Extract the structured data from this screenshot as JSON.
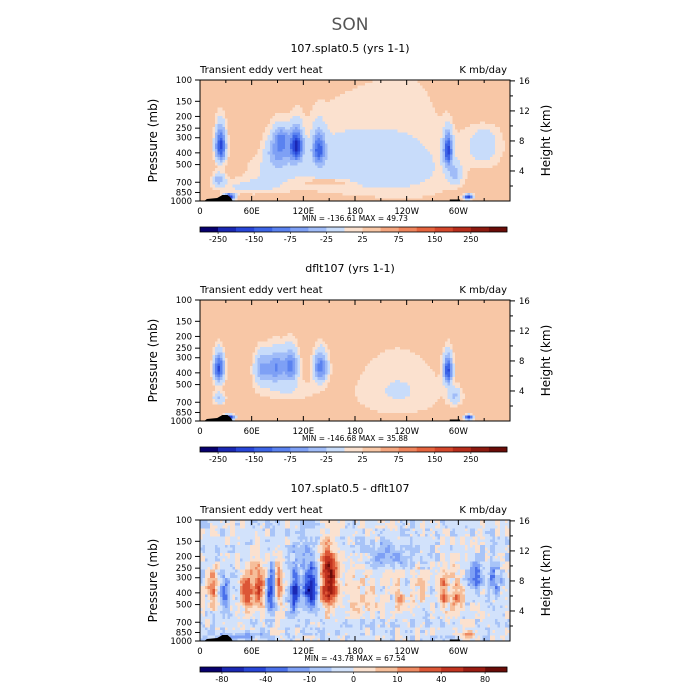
{
  "main_title": "SON",
  "chart_data": [
    {
      "type": "heatmap",
      "title": "107.splat0.5 (yrs 1-1)",
      "subtitle_left": "Transient eddy vert heat",
      "subtitle_right": "K mb/day",
      "ylabel_left": "Pressure (mb)",
      "ylabel_right": "Height (km)",
      "x_ticks": [
        {
          "label": "0",
          "lon": 0
        },
        {
          "label": "60E",
          "lon": 60
        },
        {
          "label": "120E",
          "lon": 120
        },
        {
          "label": "180",
          "lon": 180
        },
        {
          "label": "120W",
          "lon": 240
        },
        {
          "label": "60W",
          "lon": 300
        }
      ],
      "xlim": [
        0,
        360
      ],
      "pressure_ticks": [
        {
          "label": "100",
          "p": 100
        },
        {
          "label": "150",
          "p": 150
        },
        {
          "label": "200",
          "p": 200
        },
        {
          "label": "250",
          "p": 250
        },
        {
          "label": "300",
          "p": 300
        },
        {
          "label": "400",
          "p": 400
        },
        {
          "label": "500",
          "p": 500
        },
        {
          "label": "700",
          "p": 700
        },
        {
          "label": "850",
          "p": 850
        },
        {
          "label": "1000",
          "p": 1000
        }
      ],
      "plim": [
        100,
        1000
      ],
      "height_ticks": [
        {
          "label": "4",
          "km": 4
        },
        {
          "label": "8",
          "km": 8
        },
        {
          "label": "12",
          "km": 12
        },
        {
          "label": "16",
          "km": 16
        }
      ],
      "stats": "MIN = -136.61   MAX =  49.73",
      "colorbar_labels": [
        "-250",
        "-150",
        "-75",
        "-25",
        "25",
        "75",
        "150",
        "250"
      ],
      "colors": [
        "#08006e",
        "#1a28b4",
        "#2846d8",
        "#3c64e6",
        "#5a82f0",
        "#7ea0f5",
        "#a0bcf8",
        "#c8dcfa",
        "#fbe1cf",
        "#f8c7a6",
        "#f4a57e",
        "#ee845c",
        "#e5643e",
        "#d4472b",
        "#b72d1c",
        "#8d1a10",
        "#6a0c08"
      ],
      "field": {
        "background": 0.2,
        "blobs": [
          {
            "lon": 24,
            "p": 350,
            "slon": 6,
            "sp": 110,
            "a": -3.3
          },
          {
            "lon": 22,
            "p": 660,
            "slon": 7,
            "sp": 80,
            "a": -1.2
          },
          {
            "lon": 34,
            "p": 920,
            "slon": 6,
            "sp": 50,
            "a": -4
          },
          {
            "lon": 92,
            "p": 380,
            "slon": 14,
            "sp": 120,
            "a": -1.6
          },
          {
            "lon": 95,
            "p": 300,
            "slon": 8,
            "sp": 60,
            "a": -1.3
          },
          {
            "lon": 85,
            "p": 550,
            "slon": 30,
            "sp": 150,
            "a": -0.5
          },
          {
            "lon": 112,
            "p": 350,
            "slon": 7,
            "sp": 100,
            "a": -3.6
          },
          {
            "lon": 138,
            "p": 370,
            "slon": 7,
            "sp": 110,
            "a": -2.5
          },
          {
            "lon": 160,
            "p": 500,
            "slon": 55,
            "sp": 300,
            "a": -0.7
          },
          {
            "lon": 60,
            "p": 760,
            "slon": 40,
            "sp": 110,
            "a": -0.6
          },
          {
            "lon": 240,
            "p": 520,
            "slon": 60,
            "sp": 400,
            "a": -0.6
          },
          {
            "lon": 288,
            "p": 380,
            "slon": 5,
            "sp": 110,
            "a": -3.2
          },
          {
            "lon": 296,
            "p": 600,
            "slon": 8,
            "sp": 120,
            "a": -1.0
          },
          {
            "lon": 312,
            "p": 920,
            "slon": 5,
            "sp": 40,
            "a": -3.6
          },
          {
            "lon": 330,
            "p": 350,
            "slon": 20,
            "sp": 150,
            "a": -0.7
          },
          {
            "lon": 330,
            "p": 170,
            "slon": 30,
            "sp": 50,
            "a": 0.6
          },
          {
            "lon": 150,
            "p": 700,
            "slon": 25,
            "sp": 40,
            "a": 0.6
          }
        ]
      }
    },
    {
      "type": "heatmap",
      "title": "dflt107 (yrs 1-1)",
      "subtitle_left": "Transient eddy vert heat",
      "subtitle_right": "K mb/day",
      "ylabel_left": "Pressure (mb)",
      "ylabel_right": "Height (km)",
      "x_ticks": [
        {
          "label": "0",
          "lon": 0
        },
        {
          "label": "60E",
          "lon": 60
        },
        {
          "label": "120E",
          "lon": 120
        },
        {
          "label": "180",
          "lon": 180
        },
        {
          "label": "120W",
          "lon": 240
        },
        {
          "label": "60W",
          "lon": 300
        }
      ],
      "xlim": [
        0,
        360
      ],
      "pressure_ticks": [
        {
          "label": "100",
          "p": 100
        },
        {
          "label": "150",
          "p": 150
        },
        {
          "label": "200",
          "p": 200
        },
        {
          "label": "250",
          "p": 250
        },
        {
          "label": "300",
          "p": 300
        },
        {
          "label": "400",
          "p": 400
        },
        {
          "label": "500",
          "p": 500
        },
        {
          "label": "700",
          "p": 700
        },
        {
          "label": "850",
          "p": 850
        },
        {
          "label": "1000",
          "p": 1000
        }
      ],
      "plim": [
        100,
        1000
      ],
      "height_ticks": [
        {
          "label": "4",
          "km": 4
        },
        {
          "label": "8",
          "km": 8
        },
        {
          "label": "12",
          "km": 12
        },
        {
          "label": "16",
          "km": 16
        }
      ],
      "stats": "MIN = -146.68   MAX =  35.88",
      "colorbar_labels": [
        "-250",
        "-150",
        "-75",
        "-25",
        "25",
        "75",
        "150",
        "250"
      ],
      "colors": [
        "#08006e",
        "#1a28b4",
        "#2846d8",
        "#3c64e6",
        "#5a82f0",
        "#7ea0f5",
        "#a0bcf8",
        "#c8dcfa",
        "#fbe1cf",
        "#f8c7a6",
        "#f4a57e",
        "#ee845c",
        "#e5643e",
        "#d4472b",
        "#b72d1c",
        "#8d1a10",
        "#6a0c08"
      ],
      "field": {
        "background": 0.25,
        "blobs": [
          {
            "lon": 22,
            "p": 370,
            "slon": 6,
            "sp": 100,
            "a": -3.2
          },
          {
            "lon": 22,
            "p": 650,
            "slon": 7,
            "sp": 80,
            "a": -1.1
          },
          {
            "lon": 34,
            "p": 930,
            "slon": 6,
            "sp": 45,
            "a": -4
          },
          {
            "lon": 72,
            "p": 370,
            "slon": 9,
            "sp": 110,
            "a": -1.7
          },
          {
            "lon": 88,
            "p": 360,
            "slon": 9,
            "sp": 110,
            "a": -2.0
          },
          {
            "lon": 105,
            "p": 350,
            "slon": 9,
            "sp": 110,
            "a": -2.2
          },
          {
            "lon": 140,
            "p": 360,
            "slon": 8,
            "sp": 100,
            "a": -2.4
          },
          {
            "lon": 100,
            "p": 560,
            "slon": 40,
            "sp": 120,
            "a": -0.5
          },
          {
            "lon": 230,
            "p": 560,
            "slon": 55,
            "sp": 350,
            "a": -0.55
          },
          {
            "lon": 288,
            "p": 380,
            "slon": 5,
            "sp": 100,
            "a": -3.1
          },
          {
            "lon": 296,
            "p": 620,
            "slon": 8,
            "sp": 100,
            "a": -1.0
          },
          {
            "lon": 312,
            "p": 930,
            "slon": 5,
            "sp": 40,
            "a": -3.6
          },
          {
            "lon": 80,
            "p": 780,
            "slon": 30,
            "sp": 30,
            "a": 0.5
          }
        ]
      }
    },
    {
      "type": "heatmap",
      "title": "107.splat0.5 - dflt107",
      "subtitle_left": "Transient eddy vert heat",
      "subtitle_right": "K mb/day",
      "ylabel_left": "Pressure (mb)",
      "ylabel_right": "Height (km)",
      "x_ticks": [
        {
          "label": "0",
          "lon": 0
        },
        {
          "label": "60E",
          "lon": 60
        },
        {
          "label": "120E",
          "lon": 120
        },
        {
          "label": "180",
          "lon": 180
        },
        {
          "label": "120W",
          "lon": 240
        },
        {
          "label": "60W",
          "lon": 300
        }
      ],
      "xlim": [
        0,
        360
      ],
      "pressure_ticks": [
        {
          "label": "100",
          "p": 100
        },
        {
          "label": "150",
          "p": 150
        },
        {
          "label": "200",
          "p": 200
        },
        {
          "label": "250",
          "p": 250
        },
        {
          "label": "300",
          "p": 300
        },
        {
          "label": "400",
          "p": 400
        },
        {
          "label": "500",
          "p": 500
        },
        {
          "label": "700",
          "p": 700
        },
        {
          "label": "850",
          "p": 850
        },
        {
          "label": "1000",
          "p": 1000
        }
      ],
      "plim": [
        100,
        1000
      ],
      "height_ticks": [
        {
          "label": "4",
          "km": 4
        },
        {
          "label": "8",
          "km": 8
        },
        {
          "label": "12",
          "km": 12
        },
        {
          "label": "16",
          "km": 16
        }
      ],
      "stats": "MIN = -43.78   MAX =  67.54",
      "colorbar_labels": [
        "-80",
        "-40",
        "-10",
        "0",
        "10",
        "40",
        "80"
      ],
      "colors": [
        "#08006e",
        "#1a28b4",
        "#2846d8",
        "#4a70ea",
        "#7ea0f5",
        "#a8c4f8",
        "#d2e2fb",
        "#fbe1cf",
        "#f6be9a",
        "#ee8a62",
        "#dc5636",
        "#c23420",
        "#9a1c12",
        "#6a0c08"
      ],
      "field": {
        "background": -0.3,
        "noise": 1.2,
        "blobs": [
          {
            "lon": 15,
            "p": 380,
            "slon": 5,
            "sp": 140,
            "a": 2.2
          },
          {
            "lon": 28,
            "p": 420,
            "slon": 5,
            "sp": 120,
            "a": -2.0
          },
          {
            "lon": 55,
            "p": 400,
            "slon": 8,
            "sp": 160,
            "a": 2.6
          },
          {
            "lon": 70,
            "p": 380,
            "slon": 6,
            "sp": 140,
            "a": 2.8
          },
          {
            "lon": 82,
            "p": 400,
            "slon": 5,
            "sp": 150,
            "a": -2.4
          },
          {
            "lon": 92,
            "p": 360,
            "slon": 4,
            "sp": 140,
            "a": 2.3
          },
          {
            "lon": 110,
            "p": 400,
            "slon": 5,
            "sp": 160,
            "a": -3.0
          },
          {
            "lon": 128,
            "p": 380,
            "slon": 9,
            "sp": 160,
            "a": -3.4
          },
          {
            "lon": 150,
            "p": 360,
            "slon": 10,
            "sp": 160,
            "a": 4.0
          },
          {
            "lon": 148,
            "p": 230,
            "slon": 10,
            "sp": 60,
            "a": 1.5
          },
          {
            "lon": 190,
            "p": 420,
            "slon": 20,
            "sp": 200,
            "a": 0.9
          },
          {
            "lon": 232,
            "p": 480,
            "slon": 6,
            "sp": 150,
            "a": 1.4
          },
          {
            "lon": 255,
            "p": 380,
            "slon": 10,
            "sp": 150,
            "a": 0.9
          },
          {
            "lon": 283,
            "p": 400,
            "slon": 5,
            "sp": 160,
            "a": 2.2
          },
          {
            "lon": 298,
            "p": 420,
            "slon": 7,
            "sp": 150,
            "a": 1.8
          },
          {
            "lon": 312,
            "p": 870,
            "slon": 6,
            "sp": 60,
            "a": 2.6
          },
          {
            "lon": 320,
            "p": 300,
            "slon": 8,
            "sp": 80,
            "a": -1.6
          },
          {
            "lon": 340,
            "p": 330,
            "slon": 8,
            "sp": 90,
            "a": -1.6
          },
          {
            "lon": 50,
            "p": 900,
            "slon": 30,
            "sp": 60,
            "a": -1.2
          },
          {
            "lon": 220,
            "p": 200,
            "slon": 30,
            "sp": 50,
            "a": -1.2
          }
        ]
      }
    }
  ]
}
